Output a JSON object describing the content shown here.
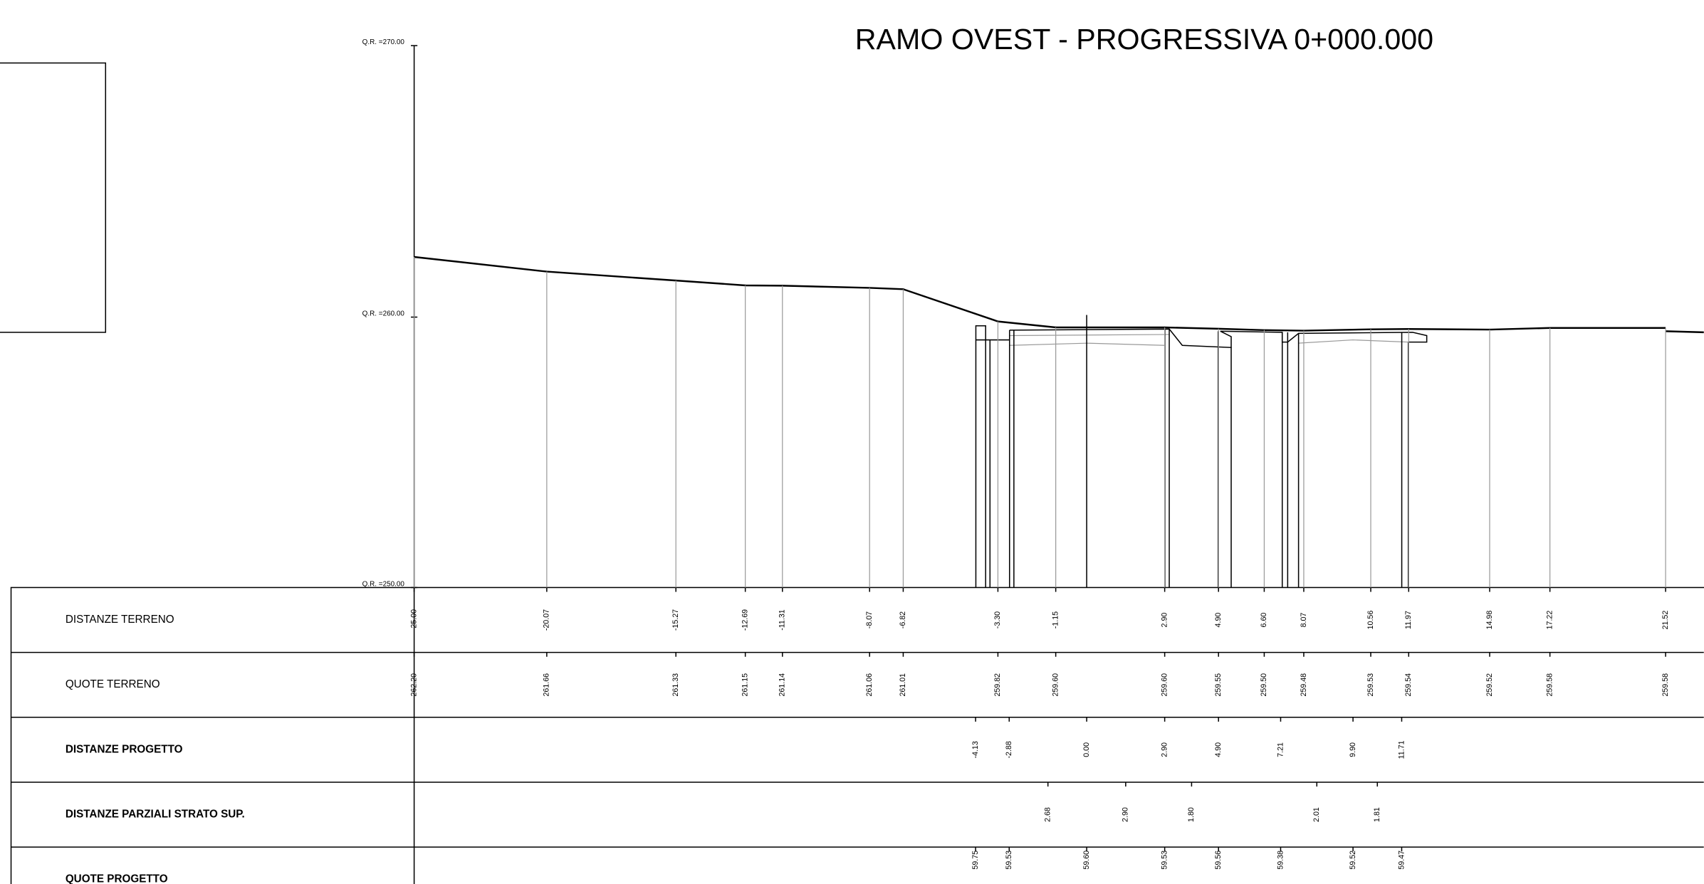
{
  "title": "RAMO OVEST - PROGRESSIVA 0+000.000",
  "levels": [
    "Q.R. =270.00",
    "Q.R. =260.00",
    "Q.R. =250.00"
  ],
  "table": {
    "rows": [
      {
        "label": "DISTANZE TERRENO",
        "values": [
          "-25.00",
          "-20.07",
          "-15.27",
          "-12.69",
          "-11.31",
          "-8.07",
          "-6.82",
          "-3.30",
          "-1.15",
          "2.90",
          "4.90",
          "6.60",
          "8.07",
          "10.56",
          "11.97",
          "14.98",
          "17.22",
          "21.52"
        ]
      },
      {
        "label": "QUOTE TERRENO",
        "values": [
          "262.20",
          "261.66",
          "261.33",
          "261.15",
          "261.14",
          "261.06",
          "261.01",
          "259.82",
          "259.60",
          "259.60",
          "259.55",
          "259.50",
          "259.48",
          "259.53",
          "259.54",
          "259.52",
          "259.58",
          "259.58"
        ]
      },
      {
        "label": "DISTANZE PROGETTO",
        "values": [
          "-4.13",
          "-2.88",
          "0.00",
          "2.90",
          "4.90",
          "7.21",
          "9.90",
          "11.71"
        ]
      },
      {
        "label": "DISTANZE PARZIALI STRATO SUP.",
        "values": [
          "2.68",
          "2.90",
          "1.80",
          "2.01",
          "1.81"
        ]
      },
      {
        "label": "QUOTE PROGETTO",
        "values": [
          "59.75",
          "59.53",
          "59.60",
          "59.53",
          "59.56",
          "59.38",
          "59.52",
          "59.47"
        ]
      }
    ]
  }
}
